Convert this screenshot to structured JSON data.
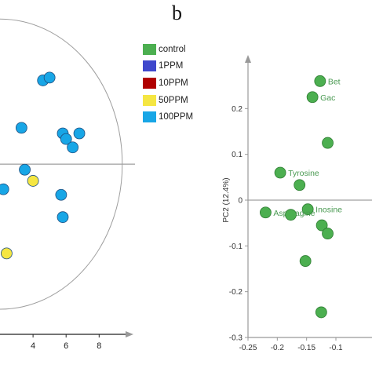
{
  "panel_b_label": "b",
  "legend": {
    "items": [
      {
        "label": "control",
        "color": "#4caf50"
      },
      {
        "label": "1PPM",
        "color": "#3f48cc"
      },
      {
        "label": "10PPM",
        "color": "#b00000"
      },
      {
        "label": "50PPM",
        "color": "#f5e642"
      },
      {
        "label": "100PPM",
        "color": "#18a6e6"
      }
    ]
  },
  "chart_data": [
    {
      "type": "scatter",
      "panel": "a",
      "xlabel": "",
      "ylabel": "",
      "x_ticks": [
        "4",
        "6",
        "8"
      ],
      "x_tick_values": [
        4,
        6,
        8
      ],
      "xlim": [
        2.0,
        9.6
      ],
      "ylim": [
        -6.1,
        4.7
      ],
      "ellipse": {
        "center_x": 2.0,
        "center_y": 0.0,
        "semi_x": 7.4,
        "semi_y": 5.2,
        "color": "#9e9e9e"
      },
      "series": [
        {
          "name": "100PPM",
          "color": "#18a6e6",
          "points": [
            [
              4.6,
              3.0
            ],
            [
              5.0,
              3.1
            ],
            [
              3.3,
              1.3
            ],
            [
              5.8,
              1.1
            ],
            [
              6.0,
              0.9
            ],
            [
              6.8,
              1.1
            ],
            [
              6.4,
              0.6
            ],
            [
              3.5,
              -0.2
            ],
            [
              2.2,
              -0.9
            ],
            [
              5.7,
              -1.1
            ],
            [
              5.8,
              -1.9
            ]
          ]
        },
        {
          "name": "50PPM",
          "color": "#f5e642",
          "points": [
            [
              4.0,
              -0.6
            ],
            [
              2.4,
              -3.2
            ]
          ]
        }
      ]
    },
    {
      "type": "scatter",
      "panel": "b",
      "xlabel": "",
      "ylabel": "PC2 (12.4%)",
      "x_ticks": [
        "-0.25",
        "-0.2",
        "-0.15",
        "-0.1"
      ],
      "x_tick_values": [
        -0.25,
        -0.2,
        -0.15,
        -0.1
      ],
      "y_ticks": [
        "0.2",
        "0.1",
        "0",
        "-0.1",
        "-0.2",
        "-0.3"
      ],
      "y_tick_values": [
        0.2,
        0.1,
        0.0,
        -0.1,
        -0.2,
        -0.3
      ],
      "xlim": [
        -0.25,
        -0.086
      ],
      "ylim": [
        -0.3,
        0.3
      ],
      "series": [
        {
          "name": "control",
          "color": "#4caf50",
          "points": [
            {
              "x": -0.127,
              "y": 0.26,
              "label": "Bet"
            },
            {
              "x": -0.14,
              "y": 0.225,
              "label": "Gac"
            },
            {
              "x": -0.114,
              "y": 0.125,
              "label": ""
            },
            {
              "x": -0.195,
              "y": 0.06,
              "label": "Tyrosine"
            },
            {
              "x": -0.162,
              "y": 0.033,
              "label": ""
            },
            {
              "x": -0.148,
              "y": -0.02,
              "label": "Inosine"
            },
            {
              "x": -0.22,
              "y": -0.027,
              "label": "Asparagine"
            },
            {
              "x": -0.177,
              "y": -0.032,
              "label": ""
            },
            {
              "x": -0.124,
              "y": -0.055,
              "label": ""
            },
            {
              "x": -0.114,
              "y": -0.073,
              "label": ""
            },
            {
              "x": -0.152,
              "y": -0.133,
              "label": ""
            },
            {
              "x": -0.125,
              "y": -0.245,
              "label": ""
            }
          ]
        }
      ]
    }
  ]
}
